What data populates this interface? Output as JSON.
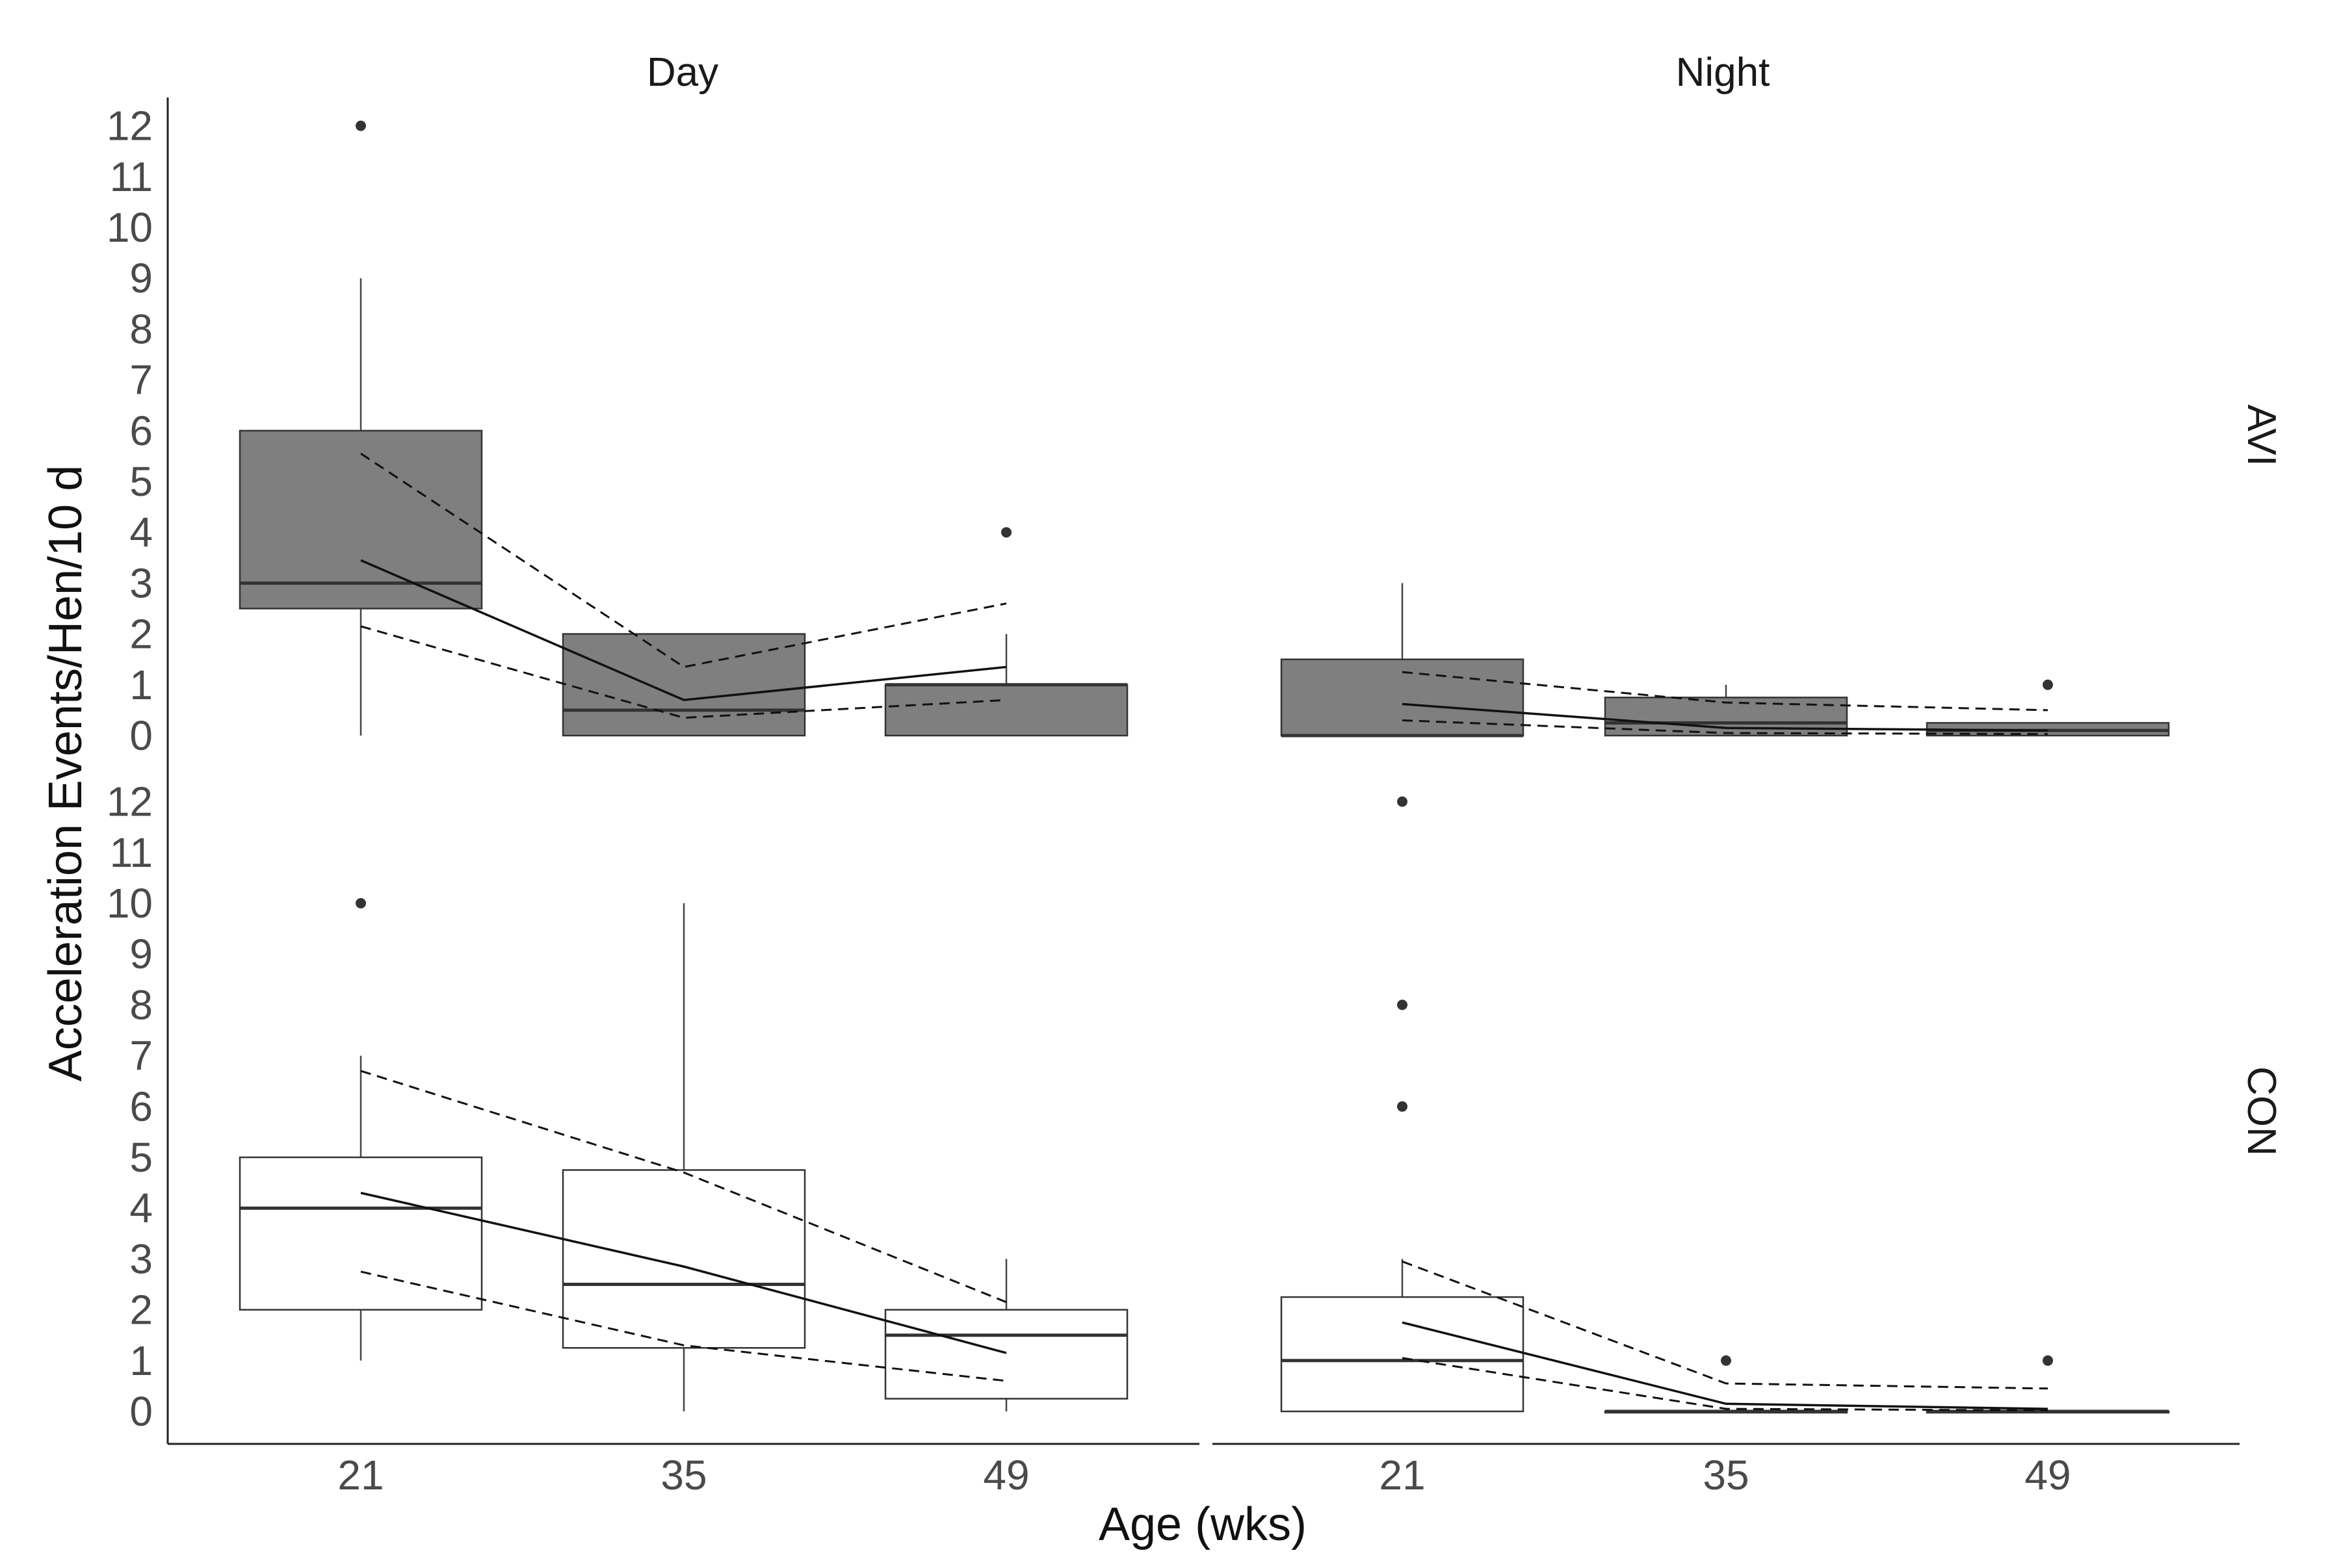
{
  "chart_data": {
    "type": "box",
    "facets": {
      "columns": [
        "Day",
        "Night"
      ],
      "rows": [
        "AVI",
        "CON"
      ]
    },
    "xlabel": "Age (wks)",
    "ylabel": "Acceleration Events/Hen/10 d",
    "categories": [
      "21",
      "35",
      "49"
    ],
    "y_ticks": [
      "0",
      "1",
      "2",
      "3",
      "4",
      "5",
      "6",
      "7",
      "8",
      "9",
      "10",
      "11",
      "12"
    ],
    "ylim": [
      -0.6,
      12.6
    ],
    "colors": {
      "AVI": "#7f7f7f",
      "CON": "#ffffff"
    },
    "panels": [
      {
        "row": "AVI",
        "col": "Day",
        "boxes": [
          {
            "age": "21",
            "min": 0,
            "q1": 2.5,
            "median": 3.0,
            "q3": 6.0,
            "max": 9.0,
            "outliers": [
              12
            ]
          },
          {
            "age": "35",
            "min": 0,
            "q1": 0,
            "median": 0.5,
            "q3": 2.0,
            "max": 2.0,
            "outliers": []
          },
          {
            "age": "49",
            "min": 0,
            "q1": 0,
            "median": 1.0,
            "q3": 1.0,
            "max": 2.0,
            "outliers": [
              4
            ]
          }
        ],
        "fit": [
          3.45,
          0.7,
          1.35
        ],
        "ci_upper": [
          5.55,
          1.35,
          2.6
        ],
        "ci_lower": [
          2.15,
          0.35,
          0.7
        ]
      },
      {
        "row": "AVI",
        "col": "Night",
        "boxes": [
          {
            "age": "21",
            "min": 0,
            "q1": 0,
            "median": 0,
            "q3": 1.5,
            "max": 3.0,
            "outliers": []
          },
          {
            "age": "35",
            "min": 0,
            "q1": 0,
            "median": 0.25,
            "q3": 0.75,
            "max": 1.0,
            "outliers": []
          },
          {
            "age": "49",
            "min": 0,
            "q1": 0,
            "median": 0.1,
            "q3": 0.25,
            "max": 0.25,
            "outliers": [
              1
            ]
          }
        ],
        "fit": [
          0.62,
          0.15,
          0.1
        ],
        "ci_upper": [
          1.25,
          0.65,
          0.5
        ],
        "ci_lower": [
          0.3,
          0.05,
          0.03
        ]
      },
      {
        "row": "CON",
        "col": "Day",
        "boxes": [
          {
            "age": "21",
            "min": 1,
            "q1": 2,
            "median": 4.0,
            "q3": 5.0,
            "max": 7.0,
            "outliers": [
              10
            ]
          },
          {
            "age": "35",
            "min": 0,
            "q1": 1.25,
            "median": 2.5,
            "q3": 4.75,
            "max": 10.0,
            "outliers": []
          },
          {
            "age": "49",
            "min": 0,
            "q1": 0.25,
            "median": 1.5,
            "q3": 2.0,
            "max": 3.0,
            "outliers": []
          }
        ],
        "fit": [
          4.3,
          2.85,
          1.15
        ],
        "ci_upper": [
          6.7,
          4.7,
          2.15
        ],
        "ci_lower": [
          2.75,
          1.3,
          0.6
        ]
      },
      {
        "row": "CON",
        "col": "Night",
        "boxes": [
          {
            "age": "21",
            "min": 0,
            "q1": 0,
            "median": 1.0,
            "q3": 2.25,
            "max": 3.0,
            "outliers": [
              6,
              8,
              12
            ]
          },
          {
            "age": "35",
            "min": 0,
            "q1": 0,
            "median": 0,
            "q3": 0,
            "max": 0,
            "outliers": [
              1
            ]
          },
          {
            "age": "49",
            "min": 0,
            "q1": 0,
            "median": 0,
            "q3": 0,
            "max": 0,
            "outliers": [
              1
            ]
          }
        ],
        "fit": [
          1.75,
          0.15,
          0.05
        ],
        "ci_upper": [
          2.95,
          0.55,
          0.45
        ],
        "ci_lower": [
          1.05,
          0.05,
          0.02
        ]
      }
    ]
  }
}
